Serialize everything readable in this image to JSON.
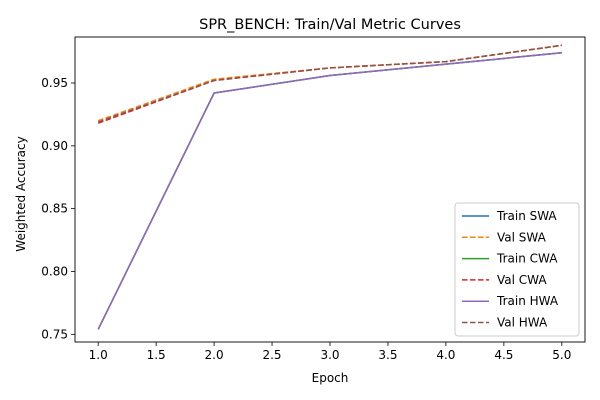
{
  "chart_data": {
    "type": "line",
    "title": "SPR_BENCH: Train/Val Metric Curves",
    "xlabel": "Epoch",
    "ylabel": "Weighted Accuracy",
    "x": [
      1,
      2,
      3,
      4,
      5
    ],
    "xlim": [
      0.8,
      5.2
    ],
    "ylim": [
      0.7439,
      0.9866
    ],
    "xticks": [
      "1.0",
      "1.5",
      "2.0",
      "2.5",
      "3.0",
      "3.5",
      "4.0",
      "4.5",
      "5.0"
    ],
    "yticks": [
      "0.75",
      "0.80",
      "0.85",
      "0.90",
      "0.95"
    ],
    "grid": false,
    "legend_position": "lower-right",
    "series": [
      {
        "name": "Train SWA",
        "values": [
          0.754,
          0.942,
          0.956,
          0.965,
          0.974
        ],
        "color": "#1f77b4",
        "dashed": false
      },
      {
        "name": "Val SWA",
        "values": [
          0.92,
          0.953,
          0.962,
          0.967,
          0.98
        ],
        "color": "#ff7f0e",
        "dashed": true
      },
      {
        "name": "Train CWA",
        "values": [
          0.754,
          0.942,
          0.956,
          0.965,
          0.974
        ],
        "color": "#2ca02c",
        "dashed": false
      },
      {
        "name": "Val CWA",
        "values": [
          0.918,
          0.952,
          0.962,
          0.967,
          0.98
        ],
        "color": "#d62728",
        "dashed": true
      },
      {
        "name": "Train HWA",
        "values": [
          0.754,
          0.942,
          0.956,
          0.965,
          0.974
        ],
        "color": "#9467bd",
        "dashed": false
      },
      {
        "name": "Val HWA",
        "values": [
          0.919,
          0.952,
          0.962,
          0.967,
          0.98
        ],
        "color": "#8c564b",
        "dashed": true
      }
    ]
  }
}
